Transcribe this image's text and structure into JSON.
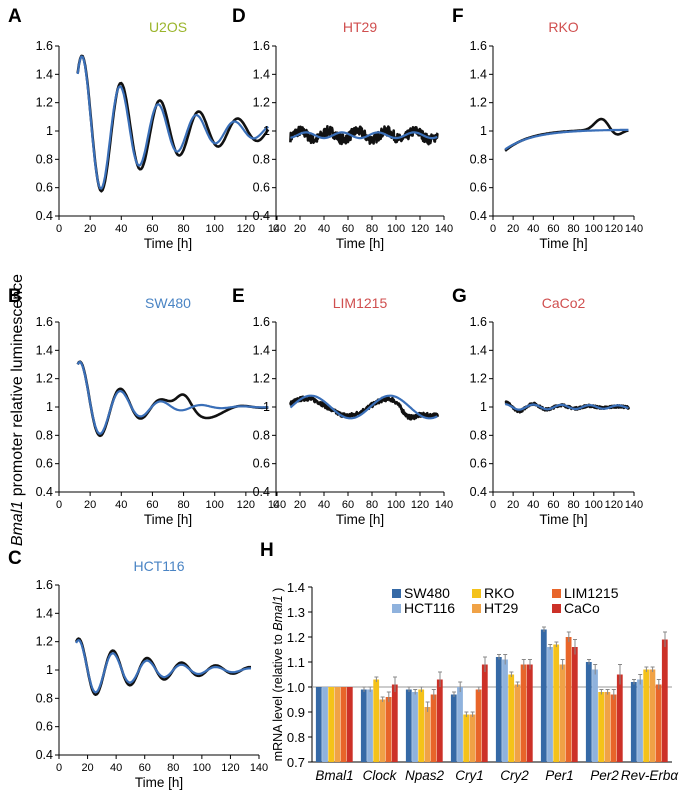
{
  "figure": {
    "ylabel_italic": "Bmal1",
    "ylabel_rest": " promoter relative luminescence"
  },
  "colors": {
    "measured": "#111111",
    "fit": "#3a6fb8",
    "title_green": "#9bb52c",
    "title_blue": "#4a84c4",
    "title_red": "#d04f4f",
    "bar_colors": [
      "#3569a6",
      "#8fb2dd",
      "#f4c21a",
      "#f0a246",
      "#e8652a",
      "#cc3128"
    ]
  },
  "chart_data": [
    {
      "type": "line",
      "panel": "A",
      "title": "U2OS",
      "title_color": "#9bb52c",
      "xlabel": "Time [h]",
      "xlim": [
        0,
        140
      ],
      "ylim": [
        0.4,
        1.6
      ],
      "xticks": [
        0,
        20,
        40,
        60,
        80,
        100,
        120,
        140
      ],
      "yticks": [
        0.4,
        0.6,
        0.8,
        1,
        1.2,
        1.4,
        1.6
      ],
      "x_range": [
        12,
        135
      ],
      "series": [
        {
          "role": "measured",
          "baseline": 1.0,
          "amplitude": 0.56,
          "period": 25,
          "decay": 0.018,
          "peak_time": 15,
          "trend": 0.0
        },
        {
          "role": "fit",
          "baseline": 1.0,
          "amplitude": 0.56,
          "period": 24.5,
          "decay": 0.021,
          "peak_time": 15,
          "trend": 0.0
        }
      ]
    },
    {
      "type": "line",
      "panel": "D",
      "title": "HT29",
      "title_color": "#d04f4f",
      "xlabel": "Time [h]",
      "xlim": [
        0,
        140
      ],
      "ylim": [
        0.4,
        1.6
      ],
      "xticks": [
        0,
        20,
        40,
        60,
        80,
        100,
        120,
        140
      ],
      "yticks": [
        0.4,
        0.6,
        0.8,
        1,
        1.2,
        1.4,
        1.6
      ],
      "x_range": [
        12,
        135
      ],
      "series": [
        {
          "role": "measured",
          "baseline": 0.97,
          "amplitude": 0.03,
          "period": 24,
          "decay": 0.0,
          "peak_time": 20,
          "trend": 0.0,
          "noise": 0.035
        },
        {
          "role": "fit",
          "baseline": 0.97,
          "amplitude": 0.02,
          "period": 30,
          "decay": 0.0,
          "peak_time": 25,
          "trend": 0.0
        }
      ]
    },
    {
      "type": "line",
      "panel": "F",
      "title": "RKO",
      "title_color": "#d04f4f",
      "xlabel": "Time [h]",
      "xlim": [
        0,
        140
      ],
      "ylim": [
        0.4,
        1.6
      ],
      "xticks": [
        0,
        20,
        40,
        60,
        80,
        100,
        120,
        140
      ],
      "yticks": [
        0.4,
        0.6,
        0.8,
        1,
        1.2,
        1.4,
        1.6
      ],
      "x_range": [
        12,
        135
      ],
      "series": [
        {
          "role": "measured",
          "baseline": 0.86,
          "amplitude": 0.0,
          "period": 24,
          "decay": 0.0,
          "peak_time": 0,
          "trend": 0.0,
          "saturate_to": 1.01,
          "saturate_rate": 0.04,
          "bump": {
            "center": 108,
            "width": 7,
            "height": 0.08
          },
          "dip": {
            "center": 122,
            "width": 6,
            "height": -0.04
          }
        },
        {
          "role": "fit",
          "baseline": 0.87,
          "amplitude": 0.0,
          "period": 24,
          "decay": 0.0,
          "peak_time": 0,
          "trend": 0.0,
          "saturate_to": 1.01,
          "saturate_rate": 0.035
        }
      ]
    },
    {
      "type": "line",
      "panel": "B",
      "title": "SW480",
      "title_color": "#4a84c4",
      "xlabel": "Time [h]",
      "xlim": [
        0,
        140
      ],
      "ylim": [
        0.4,
        1.6
      ],
      "xticks": [
        0,
        20,
        40,
        60,
        80,
        100,
        120,
        140
      ],
      "yticks": [
        0.4,
        0.6,
        0.8,
        1,
        1.2,
        1.4,
        1.6
      ],
      "x_range": [
        12,
        135
      ],
      "series": [
        {
          "role": "measured",
          "baseline": 1.0,
          "amplitude": 0.34,
          "period": 26,
          "decay": 0.035,
          "peak_time": 14,
          "trend": 0.0,
          "bump": {
            "center": 80,
            "width": 5,
            "height": 0.15
          },
          "dip2": {
            "center": 92,
            "width": 8,
            "height": -0.1
          }
        },
        {
          "role": "fit",
          "baseline": 1.0,
          "amplitude": 0.34,
          "period": 26,
          "decay": 0.04,
          "peak_time": 14,
          "trend": 0.0
        }
      ]
    },
    {
      "type": "line",
      "panel": "E",
      "title": "LIM1215",
      "title_color": "#d04f4f",
      "xlabel": "Time [h]",
      "xlim": [
        0,
        140
      ],
      "ylim": [
        0.4,
        1.6
      ],
      "xticks": [
        0,
        20,
        40,
        60,
        80,
        100,
        120,
        140
      ],
      "yticks": [
        0.4,
        0.6,
        0.8,
        1,
        1.2,
        1.4,
        1.6
      ],
      "x_range": [
        12,
        135
      ],
      "series": [
        {
          "role": "measured",
          "baseline": 1.0,
          "amplitude": 0.06,
          "period": 70,
          "decay": 0.0,
          "peak_time": 95,
          "trend": 0.0,
          "noise": 0.015,
          "dip": {
            "center": 110,
            "width": 6,
            "height": -0.08
          }
        },
        {
          "role": "fit",
          "baseline": 1.0,
          "amplitude": 0.08,
          "period": 66,
          "decay": 0.0,
          "peak_time": 95,
          "trend": 0.0
        }
      ]
    },
    {
      "type": "line",
      "panel": "G",
      "title": "CaCo2",
      "title_color": "#d04f4f",
      "xlabel": "Time [h]",
      "xlim": [
        0,
        140
      ],
      "ylim": [
        0.4,
        1.6
      ],
      "xticks": [
        0,
        20,
        40,
        60,
        80,
        100,
        120,
        140
      ],
      "yticks": [
        0.4,
        0.6,
        0.8,
        1,
        1.2,
        1.4,
        1.6
      ],
      "x_range": [
        12,
        135
      ],
      "series": [
        {
          "role": "measured",
          "baseline": 1.0,
          "amplitude": 0.04,
          "period": 28,
          "decay": 0.02,
          "peak_time": 12,
          "trend": 0.0,
          "noise": 0.008
        },
        {
          "role": "fit",
          "baseline": 1.0,
          "amplitude": 0.02,
          "period": 28,
          "decay": 0.005,
          "peak_time": 12,
          "trend": 0.0
        }
      ]
    },
    {
      "type": "line",
      "panel": "C",
      "title": "HCT116",
      "title_color": "#4a84c4",
      "xlabel": "Time [h]",
      "xlim": [
        0,
        140
      ],
      "ylim": [
        0.4,
        1.6
      ],
      "xticks": [
        0,
        20,
        40,
        60,
        80,
        100,
        120,
        140
      ],
      "yticks": [
        0.4,
        0.6,
        0.8,
        1,
        1.2,
        1.4,
        1.6
      ],
      "x_range": [
        12,
        135
      ],
      "series": [
        {
          "role": "measured",
          "baseline": 1.0,
          "amplitude": 0.23,
          "period": 24,
          "decay": 0.02,
          "peak_time": 14,
          "trend": 0.0
        },
        {
          "role": "fit",
          "baseline": 1.0,
          "amplitude": 0.22,
          "period": 24,
          "decay": 0.024,
          "peak_time": 14,
          "trend": 0.0
        }
      ]
    },
    {
      "type": "bar",
      "panel": "H",
      "ylabel_prefix": "mRNA level (relative to ",
      "ylabel_italic": "Bmal1",
      "ylabel_suffix": " )",
      "ylim": [
        0.7,
        1.4
      ],
      "yticks": [
        "0.7",
        "0.8",
        "0.9",
        "1.0",
        "1.1",
        "1.2",
        "1.3",
        "1.4"
      ],
      "reference_line": 1.0,
      "categories": [
        "Bmal1",
        "Clock",
        "Npas2",
        "Cry1",
        "Cry2",
        "Per1",
        "Per2",
        "Rev-Erbα"
      ],
      "series": [
        {
          "name": "SW480",
          "values": [
            1.0,
            0.99,
            0.99,
            0.97,
            1.12,
            1.23,
            1.1,
            1.02
          ],
          "errors": [
            0.0,
            0.01,
            0.01,
            0.01,
            0.01,
            0.01,
            0.01,
            0.01
          ]
        },
        {
          "name": "HCT116",
          "values": [
            1.0,
            0.99,
            0.98,
            1.0,
            1.11,
            1.16,
            1.07,
            1.03
          ],
          "errors": [
            0.0,
            0.01,
            0.01,
            0.02,
            0.02,
            0.01,
            0.02,
            0.02
          ]
        },
        {
          "name": "RKO",
          "values": [
            1.0,
            1.03,
            0.99,
            0.89,
            1.05,
            1.17,
            0.98,
            1.07
          ],
          "errors": [
            0.0,
            0.01,
            0.01,
            0.01,
            0.01,
            0.01,
            0.01,
            0.01
          ]
        },
        {
          "name": "HT29",
          "values": [
            1.0,
            0.95,
            0.92,
            0.89,
            1.01,
            1.09,
            0.98,
            1.07
          ],
          "errors": [
            0.0,
            0.01,
            0.02,
            0.01,
            0.01,
            0.02,
            0.01,
            0.01
          ]
        },
        {
          "name": "LIM1215",
          "values": [
            1.0,
            0.96,
            0.97,
            0.99,
            1.09,
            1.2,
            0.97,
            1.01
          ],
          "errors": [
            0.0,
            0.02,
            0.02,
            0.01,
            0.02,
            0.02,
            0.02,
            0.02
          ]
        },
        {
          "name": "CaCo",
          "values": [
            1.0,
            1.01,
            1.03,
            1.09,
            1.09,
            1.16,
            1.05,
            1.19
          ],
          "errors": [
            0.0,
            0.03,
            0.03,
            0.03,
            0.02,
            0.03,
            0.04,
            0.03
          ]
        }
      ],
      "legend_order": [
        "SW480",
        "RKO",
        "LIM1215",
        "HCT116",
        "HT29",
        "CaCo"
      ]
    }
  ]
}
